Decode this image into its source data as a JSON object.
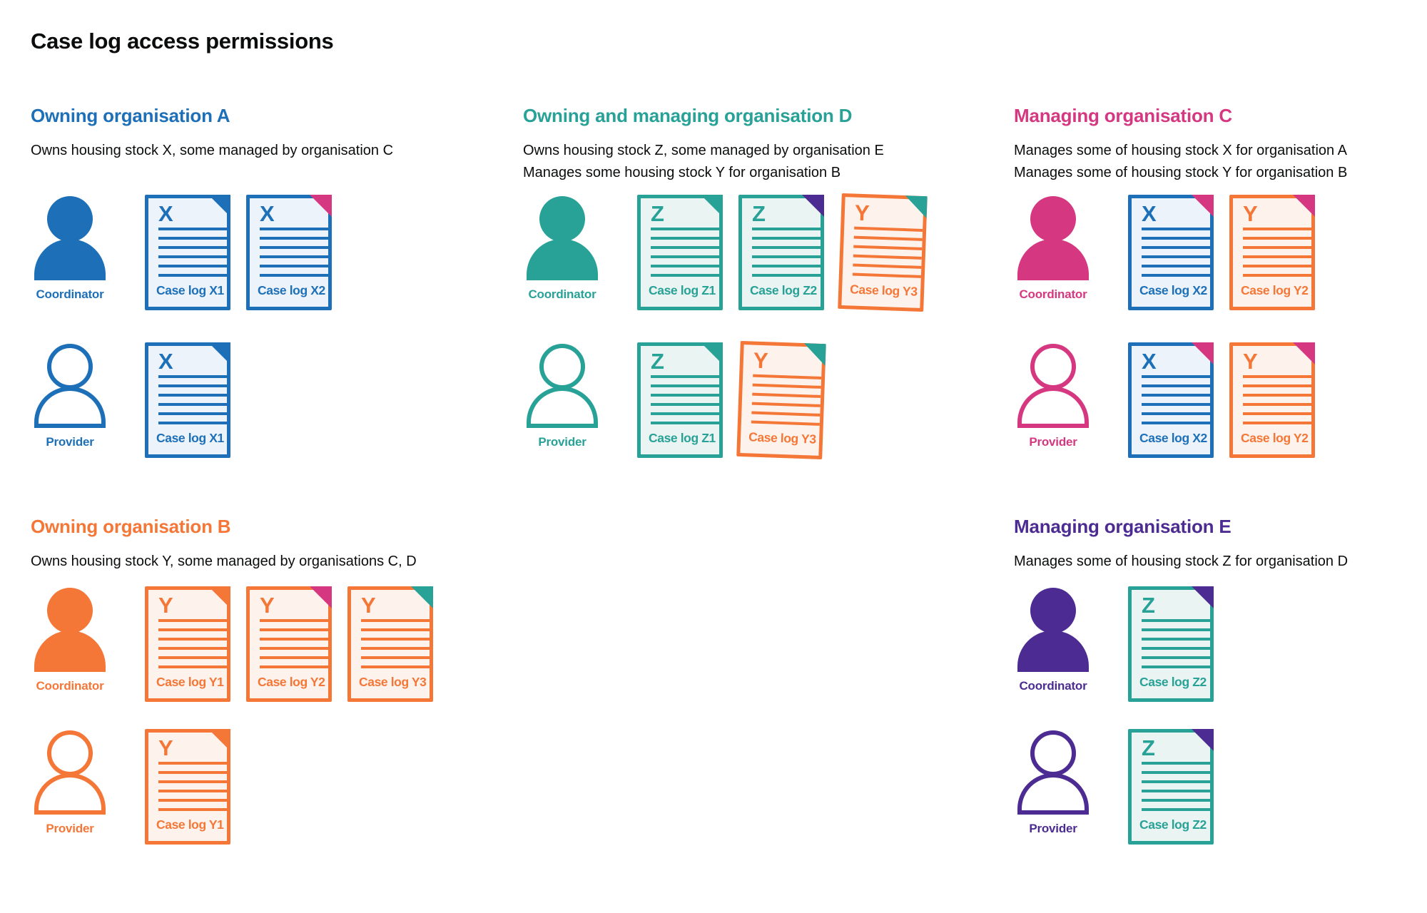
{
  "page": {
    "title": "Case log access permissions"
  },
  "colors": {
    "blue": "#1d70b8",
    "teal": "#28a197",
    "pink": "#d53880",
    "orange": "#f47738",
    "purple": "#4c2c92",
    "text": "#0b0c0c",
    "blue_tint": "#edf3fa",
    "teal_tint": "#eaf4f2",
    "orange_tint": "#fdf3ec",
    "background": "#ffffff"
  },
  "sections": [
    {
      "id": "owning-organisation-a",
      "theme": "blue",
      "heading": "Owning organisation A",
      "description_lines": [
        "Owns housing stock X, some managed by organisation C"
      ],
      "rows": [
        {
          "role": "Coordinator",
          "person_style": "filled",
          "docs": [
            {
              "letter": "X",
              "caption": "Case log X1",
              "doc_color": "blue",
              "fold_color": "blue"
            },
            {
              "letter": "X",
              "caption": "Case log X2",
              "doc_color": "blue",
              "fold_color": "pink"
            }
          ]
        },
        {
          "role": "Provider",
          "person_style": "outline",
          "docs": [
            {
              "letter": "X",
              "caption": "Case log X1",
              "doc_color": "blue",
              "fold_color": "blue"
            }
          ]
        }
      ]
    },
    {
      "id": "owning-and-managing-organisation-d",
      "theme": "teal",
      "heading": "Owning and managing organisation D",
      "description_lines": [
        "Owns housing stock Z, some managed by organisation E",
        "Manages some housing stock Y for organisation B"
      ],
      "rows": [
        {
          "role": "Coordinator",
          "person_style": "filled",
          "docs": [
            {
              "letter": "Z",
              "caption": "Case log Z1",
              "doc_color": "teal",
              "fold_color": "teal"
            },
            {
              "letter": "Z",
              "caption": "Case log Z2",
              "doc_color": "teal",
              "fold_color": "purple"
            },
            {
              "letter": "Y",
              "caption": "Case log Y3",
              "doc_color": "orange",
              "fold_color": "teal"
            }
          ]
        },
        {
          "role": "Provider",
          "person_style": "outline",
          "docs": [
            {
              "letter": "Z",
              "caption": "Case log Z1",
              "doc_color": "teal",
              "fold_color": "teal"
            },
            {
              "letter": "Y",
              "caption": "Case log Y3",
              "doc_color": "orange",
              "fold_color": "teal"
            }
          ]
        }
      ]
    },
    {
      "id": "managing-organisation-c",
      "theme": "pink",
      "heading": "Managing organisation C",
      "description_lines": [
        "Manages some of housing stock X for organisation A",
        "Manages some of housing stock Y for organisation B"
      ],
      "rows": [
        {
          "role": "Coordinator",
          "person_style": "filled",
          "docs": [
            {
              "letter": "X",
              "caption": "Case log X2",
              "doc_color": "blue",
              "fold_color": "pink"
            },
            {
              "letter": "Y",
              "caption": "Case log Y2",
              "doc_color": "orange",
              "fold_color": "pink"
            }
          ]
        },
        {
          "role": "Provider",
          "person_style": "outline",
          "docs": [
            {
              "letter": "X",
              "caption": "Case log X2",
              "doc_color": "blue",
              "fold_color": "pink"
            },
            {
              "letter": "Y",
              "caption": "Case log Y2",
              "doc_color": "orange",
              "fold_color": "pink"
            }
          ]
        }
      ]
    },
    {
      "id": "owning-organisation-b",
      "theme": "orange",
      "heading": "Owning organisation B",
      "description_lines": [
        "Owns housing stock Y, some managed by organisations C, D"
      ],
      "rows": [
        {
          "role": "Coordinator",
          "person_style": "filled",
          "docs": [
            {
              "letter": "Y",
              "caption": "Case log Y1",
              "doc_color": "orange",
              "fold_color": "orange"
            },
            {
              "letter": "Y",
              "caption": "Case log Y2",
              "doc_color": "orange",
              "fold_color": "pink"
            },
            {
              "letter": "Y",
              "caption": "Case log Y3",
              "doc_color": "orange",
              "fold_color": "teal"
            }
          ]
        },
        {
          "role": "Provider",
          "person_style": "outline",
          "docs": [
            {
              "letter": "Y",
              "caption": "Case log Y1",
              "doc_color": "orange",
              "fold_color": "orange"
            }
          ]
        }
      ]
    },
    {
      "id": "managing-organisation-e",
      "theme": "purple",
      "heading": "Managing organisation E",
      "description_lines": [
        "Manages some of housing stock Z for organisation D"
      ],
      "rows": [
        {
          "role": "Coordinator",
          "person_style": "filled",
          "docs": [
            {
              "letter": "Z",
              "caption": "Case log Z2",
              "doc_color": "teal",
              "fold_color": "purple"
            }
          ]
        },
        {
          "role": "Provider",
          "person_style": "outline",
          "docs": [
            {
              "letter": "Z",
              "caption": "Case log Z2",
              "doc_color": "teal",
              "fold_color": "purple"
            }
          ]
        }
      ]
    }
  ]
}
